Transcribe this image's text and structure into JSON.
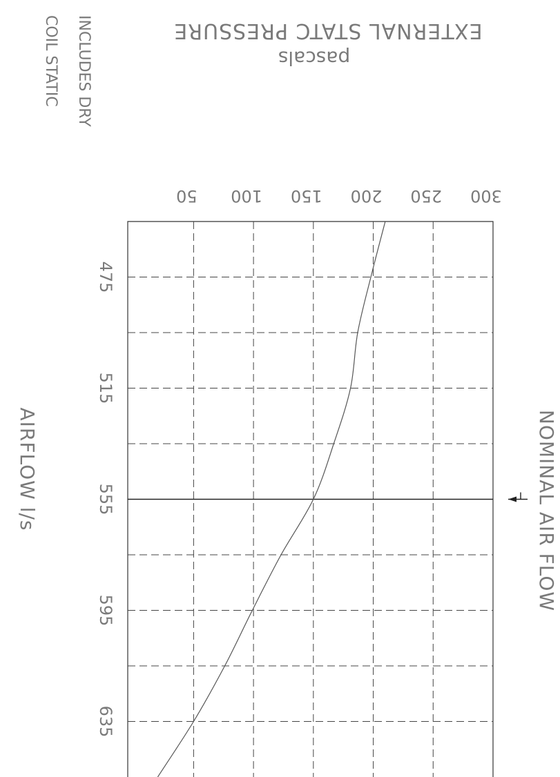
{
  "chart_data": {
    "type": "line",
    "title": "EXTERNAL STATC PRESSURE",
    "subtitle": "pascals",
    "note": [
      "INCLUDES DRY",
      "COIL STATIC"
    ],
    "xlabel": "AIRFLOW l/s",
    "ylabel": "",
    "x_ticks": [
      475,
      515,
      555,
      595,
      635
    ],
    "y_ticks": [
      50,
      100,
      150,
      200,
      250,
      300
    ],
    "xlim": [
      455,
      655
    ],
    "ylim": [
      -5,
      300
    ],
    "grid": true,
    "annotation": {
      "text": "NOMINAL AIR FLOW",
      "x": 555
    },
    "series": [
      {
        "x": [
          455,
          475,
          495,
          515,
          535,
          555,
          575,
          595,
          615,
          635,
          655
        ],
        "values": [
          210,
          198,
          187,
          181,
          167,
          150,
          123,
          99,
          76,
          50,
          20
        ]
      }
    ]
  }
}
